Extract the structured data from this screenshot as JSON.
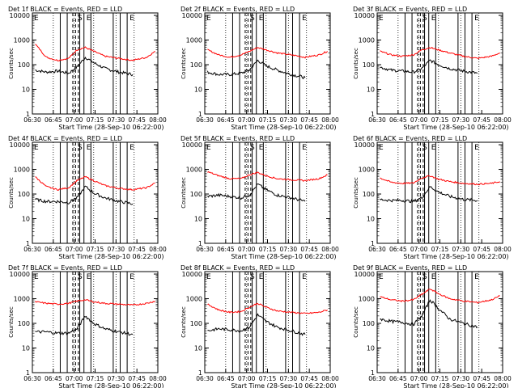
{
  "figure": {
    "common": {
      "ylabel": "Counts/sec",
      "xlabel": "Start Time (28-Sep-10 06:22:00)",
      "x_ticks": [
        "06:30",
        "06:45",
        "07:00",
        "07:15",
        "07:30",
        "07:45",
        "08:00"
      ],
      "y_ticks": [
        "1",
        "10",
        "100",
        "1000",
        "10000"
      ],
      "xlim_min": [
        8,
        98
      ],
      "ylim_log10": [
        0,
        4.1
      ],
      "series_colors": {
        "Events": "#000000",
        "LLD": "#ff0000"
      },
      "marker_letters": {
        "left": "E",
        "mid": "S",
        "right": "E",
        "far_right": "E"
      },
      "solid_lines_min": [
        28,
        33,
        42,
        45,
        50,
        66,
        71,
        76
      ],
      "dashed_lines_min": [
        37,
        39,
        41
      ],
      "dotted_lines_min": [
        23,
        38,
        52,
        68,
        81
      ]
    },
    "chart_data": [
      {
        "type": "line",
        "title": "Det 1f BLACK = Events, RED = LLD",
        "xlabel": "Start Time (28-Sep-10 06:22:00)",
        "ylabel": "Counts/sec",
        "x": [
          10,
          18,
          26,
          34,
          40,
          46,
          52,
          60,
          70,
          80,
          90,
          96
        ],
        "series": [
          {
            "name": "Events",
            "values": [
              60,
              50,
              55,
              45,
              80,
              200,
              120,
              70,
              50,
              40,
              null,
              null
            ]
          },
          {
            "name": "LLD",
            "values": [
              700,
              200,
              150,
              180,
              400,
              500,
              350,
              220,
              180,
              150,
              200,
              350
            ]
          }
        ]
      },
      {
        "type": "line",
        "title": "Det 2f BLACK = Events, RED = LLD",
        "xlabel": "Start Time (28-Sep-10 06:22:00)",
        "ylabel": "Counts/sec",
        "x": [
          10,
          18,
          26,
          34,
          40,
          46,
          52,
          60,
          70,
          80,
          90,
          96
        ],
        "series": [
          {
            "name": "Events",
            "values": [
              50,
              40,
              40,
              45,
              60,
              150,
              90,
              60,
              40,
              30,
              null,
              null
            ]
          },
          {
            "name": "LLD",
            "values": [
              400,
              250,
              200,
              250,
              350,
              500,
              400,
              300,
              250,
              200,
              250,
              350
            ]
          }
        ]
      },
      {
        "type": "line",
        "title": "Det 3f BLACK = Events, RED = LLD",
        "xlabel": "Start Time (28-Sep-10 06:22:00)",
        "ylabel": "Counts/sec",
        "x": [
          10,
          18,
          26,
          34,
          40,
          46,
          52,
          60,
          70,
          80,
          90,
          96
        ],
        "series": [
          {
            "name": "Events",
            "values": [
              80,
              60,
              55,
              50,
              70,
              150,
              100,
              70,
              55,
              45,
              null,
              null
            ]
          },
          {
            "name": "LLD",
            "values": [
              350,
              250,
              220,
              250,
              400,
              500,
              400,
              300,
              220,
              180,
              220,
              300
            ]
          }
        ]
      },
      {
        "type": "line",
        "title": "Det 4f BLACK = Events, RED = LLD",
        "xlabel": "Start Time (28-Sep-10 06:22:00)",
        "ylabel": "Counts/sec",
        "x": [
          10,
          18,
          26,
          34,
          40,
          46,
          52,
          60,
          70,
          80,
          90,
          96
        ],
        "series": [
          {
            "name": "Events",
            "values": [
              60,
              50,
              50,
              45,
              70,
              200,
              110,
              70,
              50,
              40,
              null,
              null
            ]
          },
          {
            "name": "LLD",
            "values": [
              500,
              200,
              150,
              180,
              350,
              500,
              350,
              220,
              170,
              150,
              180,
              280
            ]
          }
        ]
      },
      {
        "type": "line",
        "title": "Det 5f BLACK = Events, RED = LLD",
        "xlabel": "Start Time (28-Sep-10 06:22:00)",
        "ylabel": "Counts/sec",
        "x": [
          10,
          18,
          26,
          34,
          40,
          46,
          52,
          60,
          70,
          80,
          90,
          96
        ],
        "series": [
          {
            "name": "Events",
            "values": [
              80,
              90,
              80,
              70,
              90,
              250,
              150,
              90,
              70,
              50,
              null,
              null
            ]
          },
          {
            "name": "LLD",
            "values": [
              800,
              550,
              420,
              420,
              600,
              750,
              550,
              420,
              380,
              350,
              420,
              600
            ]
          }
        ]
      },
      {
        "type": "line",
        "title": "Det 6f BLACK = Events, RED = LLD",
        "xlabel": "Start Time (28-Sep-10 06:22:00)",
        "ylabel": "Counts/sec",
        "x": [
          10,
          18,
          26,
          34,
          40,
          46,
          52,
          60,
          70,
          80,
          90,
          96
        ],
        "series": [
          {
            "name": "Events",
            "values": [
              60,
              55,
              55,
              50,
              70,
              200,
              120,
              80,
              60,
              55,
              null,
              null
            ]
          },
          {
            "name": "LLD",
            "values": [
              450,
              300,
              270,
              280,
              450,
              550,
              400,
              320,
              270,
              250,
              270,
              320
            ]
          }
        ]
      },
      {
        "type": "line",
        "title": "Det 7f BLACK = Events, RED = LLD",
        "xlabel": "Start Time (28-Sep-10 06:22:00)",
        "ylabel": "Counts/sec",
        "x": [
          10,
          18,
          26,
          34,
          40,
          46,
          52,
          60,
          70,
          80,
          90,
          96
        ],
        "series": [
          {
            "name": "Events",
            "values": [
              45,
              45,
              40,
              40,
              60,
              200,
              100,
              60,
              45,
              35,
              null,
              null
            ]
          },
          {
            "name": "LLD",
            "values": [
              750,
              650,
              600,
              650,
              800,
              900,
              750,
              650,
              600,
              550,
              650,
              800
            ]
          }
        ]
      },
      {
        "type": "line",
        "title": "Det 8f BLACK = Events, RED = LLD",
        "xlabel": "Start Time (28-Sep-10 06:22:00)",
        "ylabel": "Counts/sec",
        "x": [
          10,
          18,
          26,
          34,
          40,
          46,
          52,
          60,
          70,
          80,
          90,
          96
        ],
        "series": [
          {
            "name": "Events",
            "values": [
              50,
              60,
              55,
              50,
              70,
              220,
              120,
              70,
              50,
              35,
              null,
              null
            ]
          },
          {
            "name": "LLD",
            "values": [
              600,
              350,
              280,
              300,
              450,
              650,
              450,
              320,
              280,
              250,
              280,
              350
            ]
          }
        ]
      },
      {
        "type": "line",
        "title": "Det 9f BLACK = Events, RED = LLD",
        "xlabel": "Start Time (28-Sep-10 06:22:00)",
        "ylabel": "Counts/sec",
        "x": [
          10,
          18,
          26,
          34,
          40,
          46,
          52,
          60,
          70,
          80,
          90,
          96
        ],
        "series": [
          {
            "name": "Events",
            "values": [
              150,
              120,
              110,
              90,
              200,
              900,
              400,
              150,
              100,
              70,
              null,
              null
            ]
          },
          {
            "name": "LLD",
            "values": [
              1200,
              900,
              800,
              900,
              1500,
              2500,
              1600,
              1000,
              800,
              700,
              900,
              1300
            ]
          }
        ]
      }
    ]
  }
}
